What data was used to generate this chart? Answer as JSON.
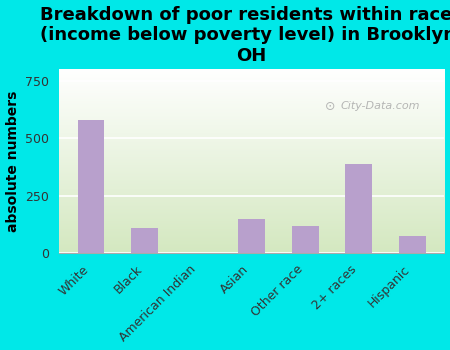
{
  "categories": [
    "White",
    "Black",
    "American Indian",
    "Asian",
    "Other race",
    "2+ races",
    "Hispanic"
  ],
  "values": [
    580,
    110,
    0,
    150,
    120,
    390,
    75
  ],
  "bar_color": "#b8a0cc",
  "title": "Breakdown of poor residents within races\n(income below poverty level) in Brooklyn,\nOH",
  "ylabel": "absolute numbers",
  "ylim": [
    0,
    800
  ],
  "yticks": [
    0,
    250,
    500,
    750
  ],
  "background_color": "#00e8e8",
  "plot_bg_top": "#d4e8c0",
  "plot_bg_bottom": "#ffffff",
  "watermark": "City-Data.com",
  "title_fontsize": 13,
  "ylabel_fontsize": 10,
  "tick_fontsize": 9,
  "grid_color": "#ffffff",
  "spine_color": "#aaaaaa"
}
